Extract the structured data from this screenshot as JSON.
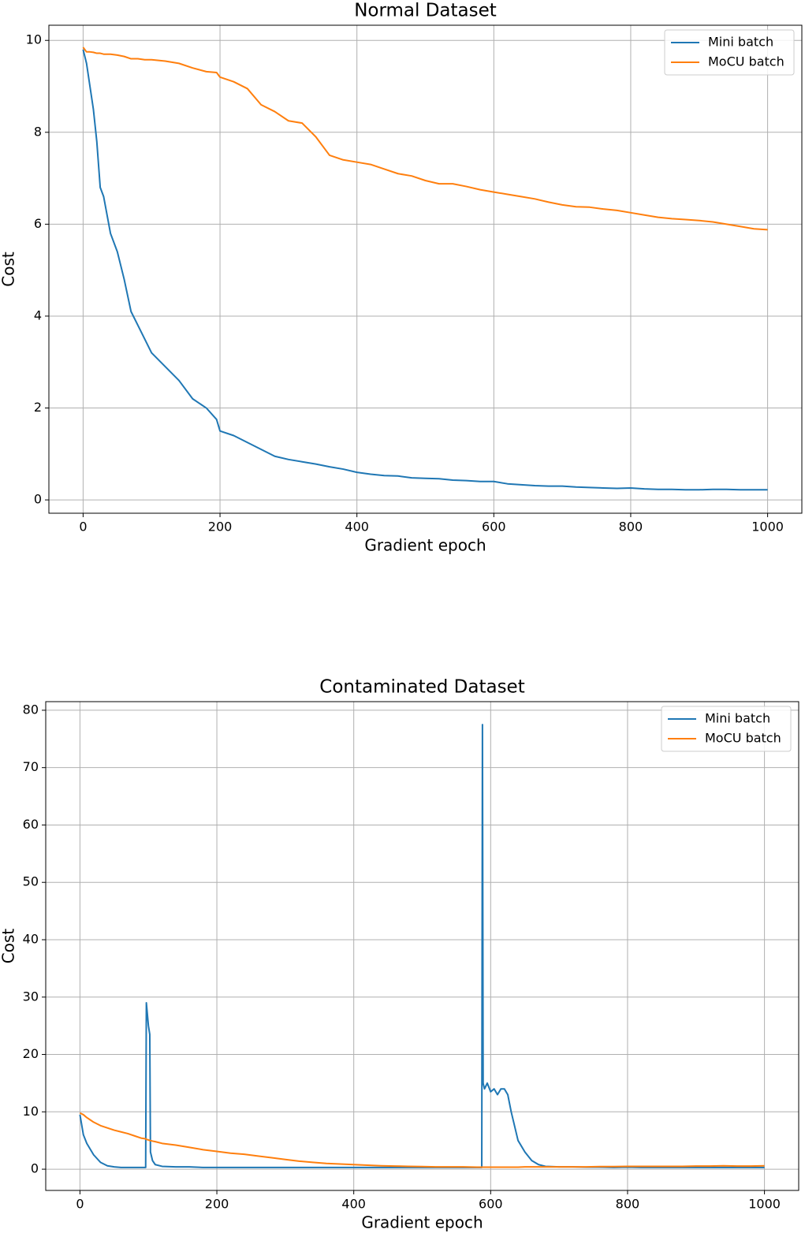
{
  "chart_data": [
    {
      "type": "line",
      "title": "Normal Dataset",
      "x_label": "Gradient epoch",
      "y_label": "Cost",
      "x": [
        0,
        5,
        10,
        15,
        20,
        25,
        30,
        40,
        50,
        60,
        70,
        80,
        90,
        100,
        120,
        140,
        160,
        180,
        195,
        200,
        220,
        240,
        260,
        280,
        300,
        320,
        340,
        360,
        380,
        400,
        420,
        440,
        460,
        480,
        500,
        520,
        540,
        560,
        580,
        600,
        620,
        640,
        660,
        680,
        700,
        720,
        740,
        760,
        780,
        800,
        820,
        840,
        860,
        880,
        900,
        920,
        940,
        960,
        980,
        1000
      ],
      "series": [
        {
          "name": "Mini batch",
          "color": "#1f77b4",
          "values": [
            9.8,
            9.5,
            9.0,
            8.5,
            7.8,
            6.8,
            6.6,
            5.8,
            5.4,
            4.8,
            4.1,
            3.8,
            3.5,
            3.2,
            2.9,
            2.6,
            2.2,
            2.0,
            1.75,
            1.5,
            1.4,
            1.25,
            1.1,
            0.95,
            0.88,
            0.83,
            0.78,
            0.72,
            0.67,
            0.6,
            0.56,
            0.53,
            0.52,
            0.48,
            0.47,
            0.46,
            0.43,
            0.42,
            0.4,
            0.4,
            0.35,
            0.33,
            0.31,
            0.3,
            0.3,
            0.28,
            0.27,
            0.26,
            0.25,
            0.26,
            0.24,
            0.23,
            0.23,
            0.22,
            0.22,
            0.23,
            0.23,
            0.22,
            0.22,
            0.22
          ]
        },
        {
          "name": "MoCU batch",
          "color": "#ff7f0e",
          "values": [
            9.85,
            9.75,
            9.75,
            9.74,
            9.72,
            9.72,
            9.7,
            9.7,
            9.68,
            9.65,
            9.6,
            9.6,
            9.58,
            9.58,
            9.55,
            9.5,
            9.4,
            9.32,
            9.3,
            9.2,
            9.1,
            8.95,
            8.6,
            8.45,
            8.25,
            8.2,
            7.9,
            7.5,
            7.4,
            7.35,
            7.3,
            7.2,
            7.1,
            7.05,
            6.95,
            6.88,
            6.88,
            6.82,
            6.75,
            6.7,
            6.65,
            6.6,
            6.55,
            6.48,
            6.42,
            6.38,
            6.37,
            6.33,
            6.3,
            6.25,
            6.2,
            6.15,
            6.12,
            6.1,
            6.08,
            6.05,
            6.0,
            5.95,
            5.9,
            5.88
          ]
        }
      ],
      "xlim": [
        -50,
        1050
      ],
      "ylim": [
        -0.29,
        10.33
      ],
      "xticks": [
        0,
        200,
        400,
        600,
        800,
        1000
      ],
      "yticks": [
        0,
        2,
        4,
        6,
        8,
        10
      ],
      "grid": true,
      "legend": "upper-right"
    },
    {
      "type": "line",
      "title": "Contaminated Dataset",
      "x_label": "Gradient epoch",
      "y_label": "Cost",
      "x": [
        0,
        5,
        10,
        15,
        20,
        30,
        40,
        50,
        60,
        70,
        80,
        90,
        96,
        97,
        100,
        102,
        103,
        106,
        110,
        120,
        140,
        160,
        180,
        200,
        220,
        240,
        260,
        280,
        300,
        320,
        340,
        360,
        380,
        400,
        420,
        440,
        460,
        480,
        500,
        520,
        540,
        560,
        580,
        587,
        588,
        589,
        591,
        595,
        600,
        605,
        610,
        615,
        620,
        625,
        630,
        640,
        650,
        660,
        670,
        680,
        700,
        720,
        740,
        760,
        780,
        800,
        820,
        840,
        860,
        880,
        900,
        920,
        940,
        960,
        980,
        1000
      ],
      "series": [
        {
          "name": "Mini batch",
          "color": "#1f77b4",
          "values": [
            9.5,
            6,
            4.5,
            3.5,
            2.5,
            1.2,
            0.6,
            0.4,
            0.3,
            0.3,
            0.3,
            0.3,
            0.3,
            29,
            25,
            23.5,
            3,
            1.5,
            0.8,
            0.5,
            0.4,
            0.4,
            0.3,
            0.3,
            0.3,
            0.3,
            0.3,
            0.3,
            0.3,
            0.3,
            0.3,
            0.3,
            0.3,
            0.3,
            0.3,
            0.3,
            0.3,
            0.3,
            0.3,
            0.3,
            0.3,
            0.3,
            0.3,
            0.3,
            77.5,
            15,
            14,
            15,
            13.5,
            14,
            13,
            14,
            14,
            13,
            10,
            5,
            3,
            1.5,
            0.8,
            0.5,
            0.4,
            0.4,
            0.35,
            0.35,
            0.3,
            0.35,
            0.3,
            0.3,
            0.3,
            0.3,
            0.3,
            0.3,
            0.3,
            0.3,
            0.3,
            0.3
          ]
        },
        {
          "name": "MoCU batch",
          "color": "#ff7f0e",
          "values": [
            9.8,
            9.5,
            9,
            8.6,
            8.2,
            7.6,
            7.2,
            6.8,
            6.5,
            6.2,
            5.8,
            5.4,
            5.3,
            5.2,
            5.1,
            5.0,
            5.0,
            4.9,
            4.8,
            4.5,
            4.2,
            3.8,
            3.4,
            3.1,
            2.8,
            2.6,
            2.3,
            2.0,
            1.7,
            1.4,
            1.2,
            1.0,
            0.9,
            0.8,
            0.7,
            0.6,
            0.55,
            0.5,
            0.45,
            0.4,
            0.4,
            0.4,
            0.35,
            0.35,
            0.35,
            0.35,
            0.35,
            0.35,
            0.35,
            0.35,
            0.35,
            0.35,
            0.35,
            0.35,
            0.35,
            0.35,
            0.4,
            0.4,
            0.4,
            0.4,
            0.4,
            0.4,
            0.4,
            0.45,
            0.45,
            0.5,
            0.5,
            0.5,
            0.5,
            0.5,
            0.55,
            0.55,
            0.6,
            0.55,
            0.55,
            0.6
          ]
        }
      ],
      "xlim": [
        -50,
        1050
      ],
      "ylim": [
        -3.7,
        81.5
      ],
      "xticks": [
        0,
        200,
        400,
        600,
        800,
        1000
      ],
      "yticks": [
        0,
        10,
        20,
        30,
        40,
        50,
        60,
        70,
        80
      ],
      "grid": true,
      "legend": "upper-right"
    }
  ]
}
